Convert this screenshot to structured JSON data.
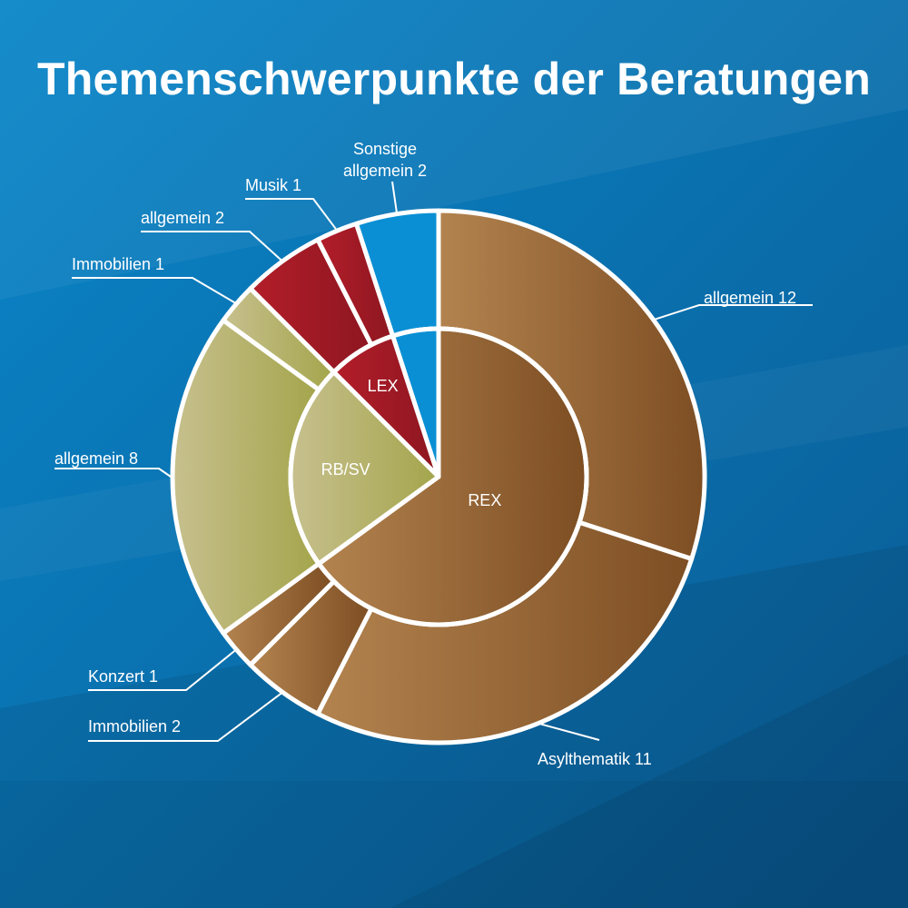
{
  "title": "Themenschwerpunkte der Beratungen",
  "colors": {
    "background_top": "#0a86c9",
    "background_bottom": "#0a5a92",
    "rex_light": "#b3834f",
    "rex_dark": "#7d4e23",
    "rbsv_light": "#c7c08e",
    "rbsv_dark": "#a4a54c",
    "lex_light": "#b31e2a",
    "lex_dark": "#8d1620",
    "sonstige": "#0a8fd4",
    "separator": "#ffffff"
  },
  "chart_data": {
    "type": "pie",
    "subtype": "sunburst",
    "title": "Themenschwerpunkte der Beratungen",
    "start_angle": "12 o'clock",
    "direction": "clockwise",
    "inner": [
      {
        "name": "REX",
        "value": 26,
        "label": "REX",
        "color": "rex"
      },
      {
        "name": "RB/SV",
        "value": 9,
        "label": "RB/SV",
        "color": "rbsv"
      },
      {
        "name": "LEX",
        "value": 3,
        "label": "LEX",
        "color": "lex"
      },
      {
        "name": "Sonstige",
        "value": 2,
        "label": "",
        "color": "sonstige"
      }
    ],
    "outer": [
      {
        "parent": "REX",
        "label": "allgemein 12",
        "value": 12
      },
      {
        "parent": "REX",
        "label": "Asylthematik 11",
        "value": 11
      },
      {
        "parent": "REX",
        "label": "Immobilien 2",
        "value": 2
      },
      {
        "parent": "REX",
        "label": "Konzert 1",
        "value": 1
      },
      {
        "parent": "RB/SV",
        "label": "allgemein 8",
        "value": 8
      },
      {
        "parent": "RB/SV",
        "label": "Immobilien 1",
        "value": 1
      },
      {
        "parent": "LEX",
        "label": "allgemein 2",
        "value": 2
      },
      {
        "parent": "LEX",
        "label": "Musik 1",
        "value": 1
      },
      {
        "parent": "Sonstige",
        "label": "Sonstige allgemein 2",
        "label_lines": [
          "Sonstige",
          "allgemein 2"
        ],
        "value": 2
      }
    ]
  }
}
